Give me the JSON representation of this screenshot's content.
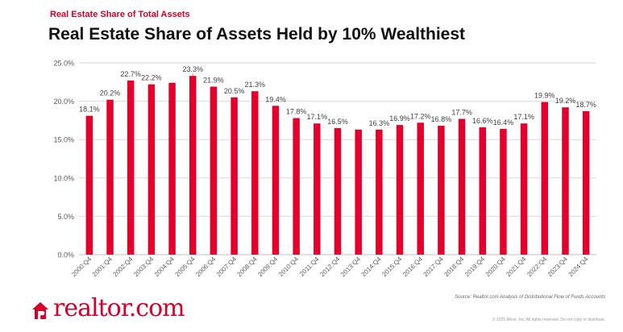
{
  "header": {
    "kicker": "Real Estate Share of Total Assets",
    "title": "Real Estate Share of Assets Held by 10% Wealthiest"
  },
  "footer": {
    "source": "Source: Realtor.com Analysis of Distributional Flow of Funds Accounts",
    "copyright": "© 2025 Move, Inc. All rights reserved. Do not copy or distribute.",
    "logo_text": "realtor.com"
  },
  "colors": {
    "bar": "#e4002b",
    "brand": "#d6002a",
    "grid": "#d9d9d9",
    "text": "#595959"
  },
  "chart_data": {
    "type": "bar",
    "title": "Real Estate Share of Assets Held by 10% Wealthiest",
    "categories": [
      "2000:Q4",
      "2001:Q4",
      "2002:Q4",
      "2003:Q4",
      "2004:Q4",
      "2005:Q4",
      "2006:Q4",
      "2007:Q4",
      "2008:Q4",
      "2009:Q4",
      "2010:Q4",
      "2011:Q4",
      "2012:Q4",
      "2013:Q4",
      "2014:Q4",
      "2015:Q4",
      "2016:Q4",
      "2017:Q4",
      "2018:Q4",
      "2019:Q4",
      "2020:Q4",
      "2021:Q4",
      "2022:Q4",
      "2023:Q4",
      "2024:Q4"
    ],
    "values": [
      18.1,
      20.2,
      22.7,
      22.2,
      22.4,
      23.3,
      21.9,
      20.5,
      21.3,
      19.4,
      17.8,
      17.1,
      16.5,
      16.3,
      16.3,
      16.9,
      17.2,
      16.8,
      17.7,
      16.6,
      16.4,
      17.1,
      19.9,
      19.2,
      18.7
    ],
    "data_labels": [
      "18.1%",
      "20.2%",
      "22.7%",
      "22.2%",
      "",
      "23.3%",
      "21.9%",
      "20.5%",
      "21.3%",
      "19.4%",
      "17.8%",
      "17.1%",
      "16.5%",
      "",
      "16.3%",
      "16.9%",
      "17.2%",
      "16.8%",
      "17.7%",
      "16.6%",
      "16.4%",
      "17.1%",
      "19.9%",
      "19.2%",
      "18.7%"
    ],
    "y_ticks": [
      "0.0%",
      "5.0%",
      "10.0%",
      "15.0%",
      "20.0%",
      "25.0%"
    ],
    "ylim": [
      0,
      25
    ],
    "grid": true,
    "legend": "none",
    "xlabel": "",
    "ylabel": ""
  }
}
